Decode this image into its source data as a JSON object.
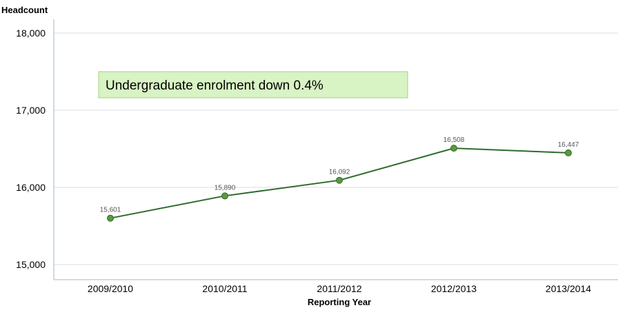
{
  "chart_data": {
    "type": "line",
    "ylabel": "Headcount",
    "xlabel": "Reporting Year",
    "categories": [
      "2009/2010",
      "2010/2011",
      "2011/2012",
      "2012/2013",
      "2013/2014"
    ],
    "series": [
      {
        "values": [
          15601,
          15890,
          16092,
          16508,
          16447
        ],
        "labels": [
          "15,601",
          "15,890",
          "16,092",
          "16,508",
          "16,447"
        ],
        "color": "#2e6b2e",
        "marker_color": "#5a9a3c"
      }
    ],
    "ylim": [
      15000,
      18000
    ],
    "yticks": [
      15000,
      16000,
      17000,
      18000
    ],
    "ytick_labels": [
      "15,000",
      "16,000",
      "17,000",
      "18,000"
    ],
    "grid": true,
    "annotation": {
      "text": "Undergraduate enrolment down 0.4%",
      "background": "#d8f3c4",
      "border": "#a5d07f"
    },
    "axis_color": "#9fb8cc",
    "grid_color": "#d9dde2"
  }
}
